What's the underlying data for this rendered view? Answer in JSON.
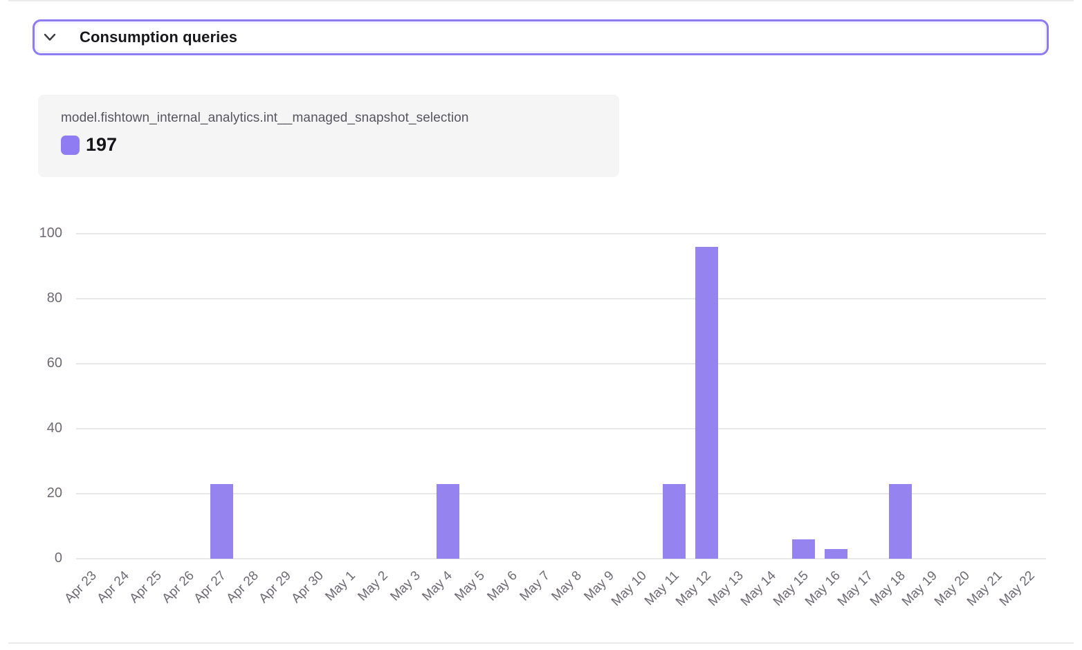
{
  "header": {
    "title": "Consumption queries",
    "chevron_icon": "chevron-down",
    "border_color": "#8c7bf1"
  },
  "legend": {
    "series_name": "model.fishtown_internal_analytics.int__managed_snapshot_selection",
    "value": "197",
    "swatch_color": "#8f7cf2"
  },
  "colors": {
    "bar": "#9583f0",
    "grid": "#e8e8eb",
    "axis_text": "#6e6973"
  },
  "chart_data": {
    "type": "bar",
    "title": "",
    "xlabel": "",
    "ylabel": "",
    "categories": [
      "Apr 23",
      "Apr 24",
      "Apr 25",
      "Apr 26",
      "Apr 27",
      "Apr 28",
      "Apr 29",
      "Apr 30",
      "May 1",
      "May 2",
      "May 3",
      "May 4",
      "May 5",
      "May 6",
      "May 7",
      "May 8",
      "May 9",
      "May 10",
      "May 11",
      "May 12",
      "May 13",
      "May 14",
      "May 15",
      "May 16",
      "May 17",
      "May 18",
      "May 19",
      "May 20",
      "May 21",
      "May 22"
    ],
    "values": [
      0,
      0,
      0,
      0,
      23,
      0,
      0,
      0,
      0,
      0,
      0,
      23,
      0,
      0,
      0,
      0,
      0,
      0,
      23,
      96,
      0,
      0,
      6,
      3,
      0,
      23,
      0,
      0,
      0,
      0
    ],
    "series": [
      {
        "name": "model.fishtown_internal_analytics.int__managed_snapshot_selection",
        "total": 197,
        "color": "#9583f0"
      }
    ],
    "ylim": [
      0,
      100
    ],
    "yticks": [
      0,
      20,
      40,
      60,
      80,
      100
    ],
    "grid": true,
    "legend_position": "top-left-card",
    "bar_color": "#9583f0"
  }
}
